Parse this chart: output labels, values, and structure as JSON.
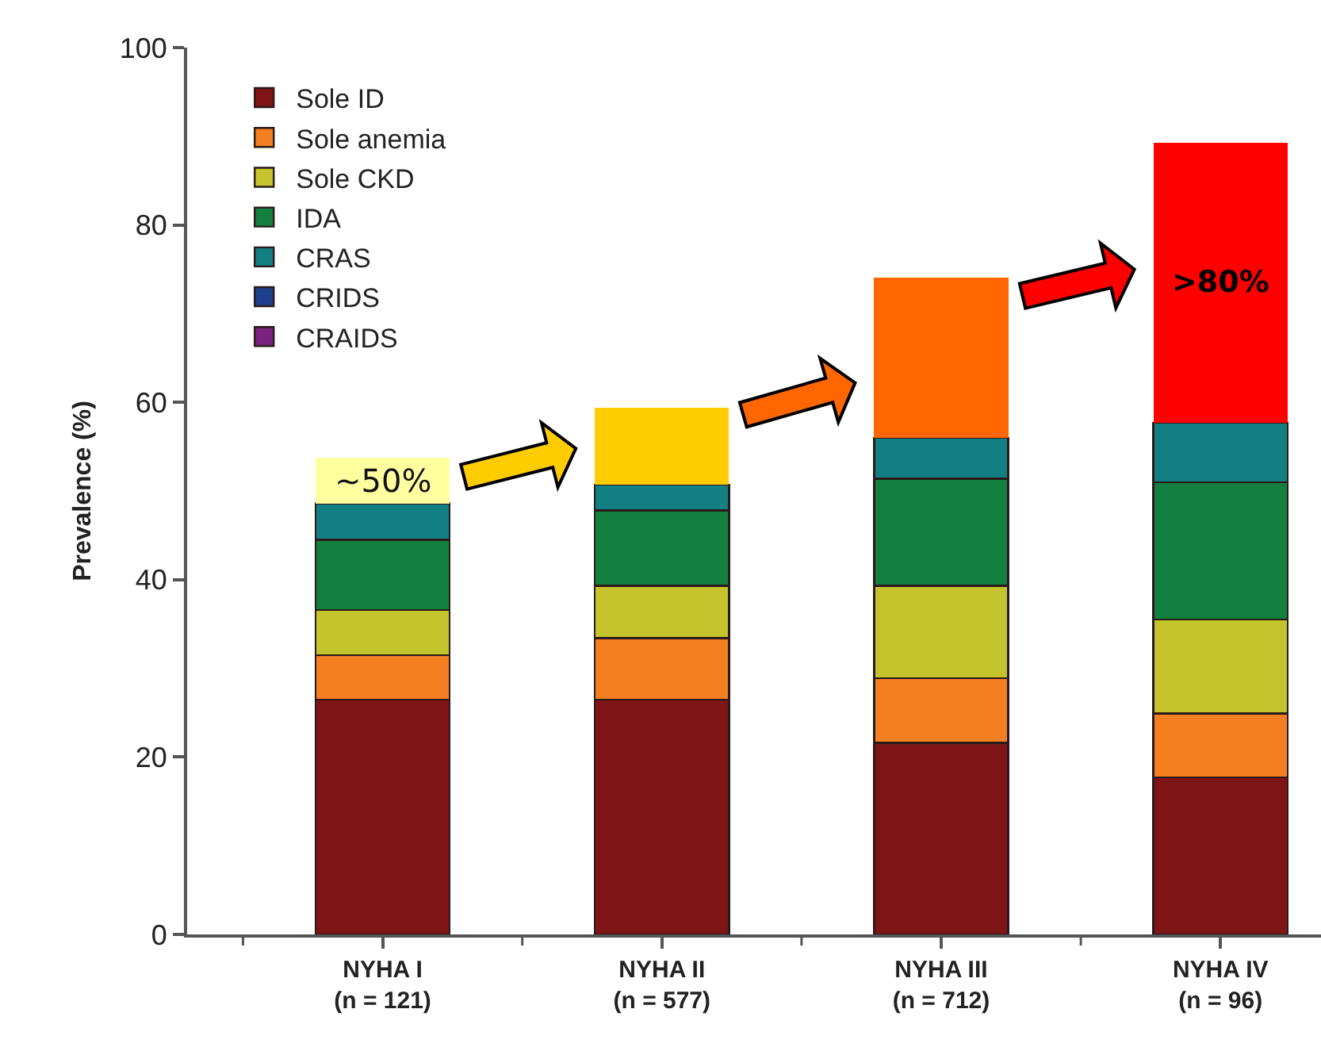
{
  "chart_data": {
    "type": "bar",
    "stacked": true,
    "ylabel": "Prevalence (%)",
    "legend": "top left",
    "categories": [
      "NYHA I\n(n = 121)",
      "NYHA II\n(n = 577)",
      "NYHA III\n(n = 712)",
      "NYHA IV\n(n = 96)"
    ],
    "series": [
      {
        "name": "Sole ID",
        "color": "#7f1416",
        "values": [
          26.5,
          26.5,
          21.6,
          17.7
        ]
      },
      {
        "name": "Sole anemia",
        "color": "#f47f20",
        "values": [
          5.0,
          6.9,
          7.3,
          7.2
        ]
      },
      {
        "name": "Sole CKD",
        "color": "#c5c42c",
        "values": [
          5.1,
          5.9,
          10.4,
          10.6
        ]
      },
      {
        "name": "IDA",
        "color": "#138040",
        "values": [
          7.9,
          8.5,
          12.1,
          15.5
        ]
      },
      {
        "name": "CRAS",
        "color": "#128083",
        "values": [
          4.1,
          2.9,
          4.6,
          6.7
        ]
      },
      {
        "name": "CRIDS",
        "color": "#1e3f8c",
        "values": [
          null,
          null,
          null,
          null
        ]
      },
      {
        "name": "CRAIDS",
        "color": "#7a2182",
        "values": [
          null,
          null,
          null,
          null
        ]
      },
      {
        "colors": [
          "#ffffa0",
          "#ffcc00",
          "#ff6600",
          "#ff0000"
        ],
        "values": [
          5.2,
          8.7,
          18.1,
          31.6
        ]
      }
    ],
    "ylim": [
      0,
      100
    ],
    "yticks": [
      0,
      20,
      40,
      60,
      80,
      100
    ],
    "totals": [
      "~50%",
      null,
      null,
      ">80%"
    ]
  }
}
